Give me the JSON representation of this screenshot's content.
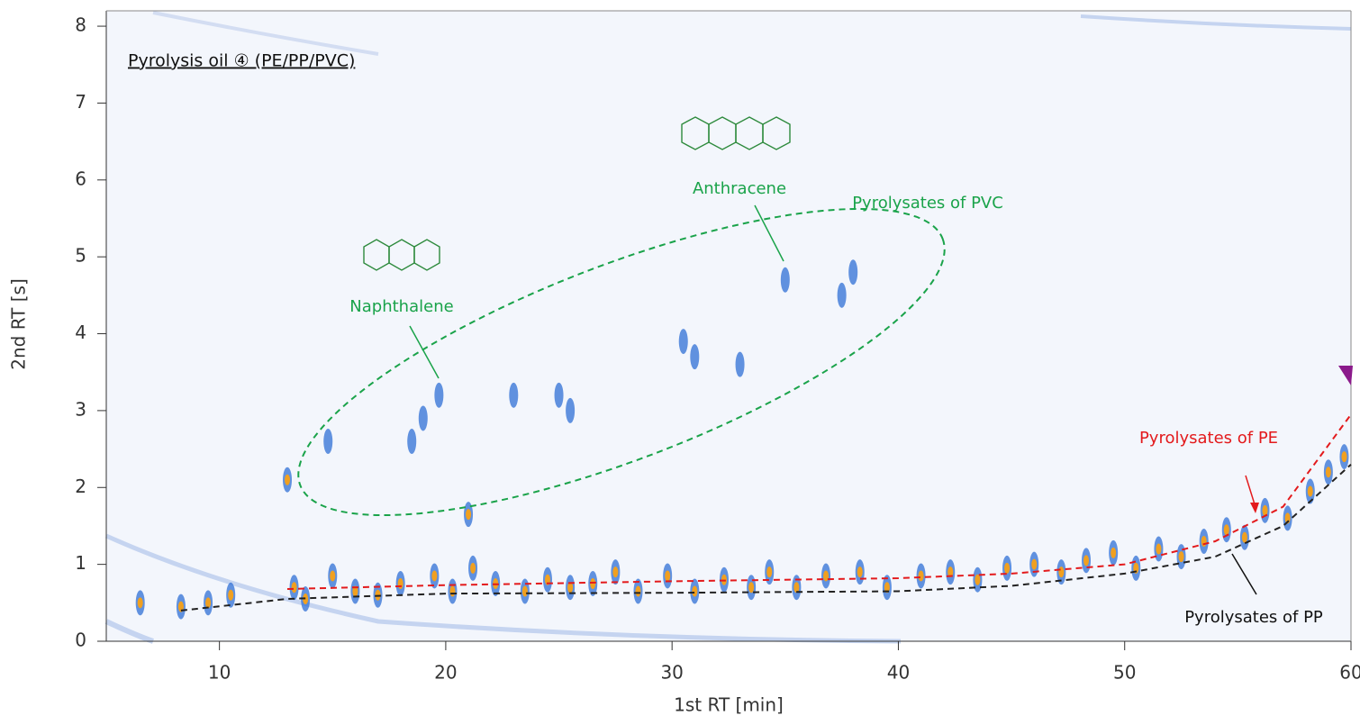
{
  "chart_data": {
    "type": "scatter",
    "title": "Pyrolysis oil ④ (PE/PP/PVC)",
    "x_label": "1st RT [min]",
    "y_label": "2nd RT [s]",
    "xlim": [
      5,
      60
    ],
    "ylim": [
      0,
      8.2
    ],
    "xticks": [
      10,
      20,
      30,
      40,
      50,
      60
    ],
    "yticks": [
      0,
      1,
      2,
      3,
      4,
      5,
      6,
      7,
      8
    ],
    "annotations": [
      "Naphthalene",
      "Anthracene",
      "Pyrolysates of PVC"
    ],
    "series": [
      {
        "color": "#2f6fd6",
        "x": [
          6.5,
          8.3,
          9.5,
          10.5,
          13.3,
          13.8,
          15,
          16,
          17,
          18,
          19.5,
          20.3,
          21.2,
          22.2,
          23.5,
          24.5,
          25.5,
          26.5,
          27.5,
          28.5,
          29.8,
          31,
          32.3,
          33.5,
          34.3,
          35.5,
          36.8,
          38.3,
          39.5,
          41,
          42.3,
          43.5,
          44.8,
          46,
          47.2,
          48.3,
          49.5,
          50.5,
          51.5,
          52.5,
          53.5,
          54.5,
          55.3,
          56.2,
          57.2,
          58.2,
          59,
          59.7,
          13,
          14.8,
          18.5,
          19,
          19.7,
          21,
          23,
          25,
          25.5,
          30.5,
          31,
          33,
          35,
          37.5,
          38
        ],
        "y": [
          0.5,
          0.45,
          0.5,
          0.6,
          0.7,
          0.55,
          0.85,
          0.65,
          0.6,
          0.75,
          0.85,
          0.65,
          0.95,
          0.75,
          0.65,
          0.8,
          0.7,
          0.75,
          0.9,
          0.65,
          0.85,
          0.65,
          0.8,
          0.7,
          0.9,
          0.7,
          0.85,
          0.9,
          0.7,
          0.85,
          0.9,
          0.8,
          0.95,
          1.0,
          0.9,
          1.05,
          1.15,
          0.95,
          1.2,
          1.1,
          1.3,
          1.45,
          1.35,
          1.7,
          1.6,
          1.95,
          2.2,
          2.4,
          2.1,
          2.6,
          2.6,
          2.9,
          3.2,
          1.65,
          3.2,
          3.2,
          3.0,
          3.9,
          3.7,
          3.6,
          4.7,
          4.5,
          4.8
        ]
      },
      {
        "name": "Pyrolysates of PE",
        "color": "#e31a1c",
        "style": "dashed",
        "x": [
          13,
          20,
          30,
          40,
          45,
          50,
          54,
          57,
          60
        ],
        "y": [
          0.68,
          0.73,
          0.78,
          0.82,
          0.88,
          1.0,
          1.3,
          1.75,
          2.95
        ]
      },
      {
        "name": "Pyrolysates of PP",
        "color": "#222222",
        "style": "dashed",
        "x": [
          8.3,
          13,
          20,
          30,
          40,
          45,
          50,
          54,
          57,
          60
        ],
        "y": [
          0.4,
          0.55,
          0.62,
          0.63,
          0.65,
          0.72,
          0.88,
          1.1,
          1.5,
          2.3
        ]
      }
    ]
  }
}
